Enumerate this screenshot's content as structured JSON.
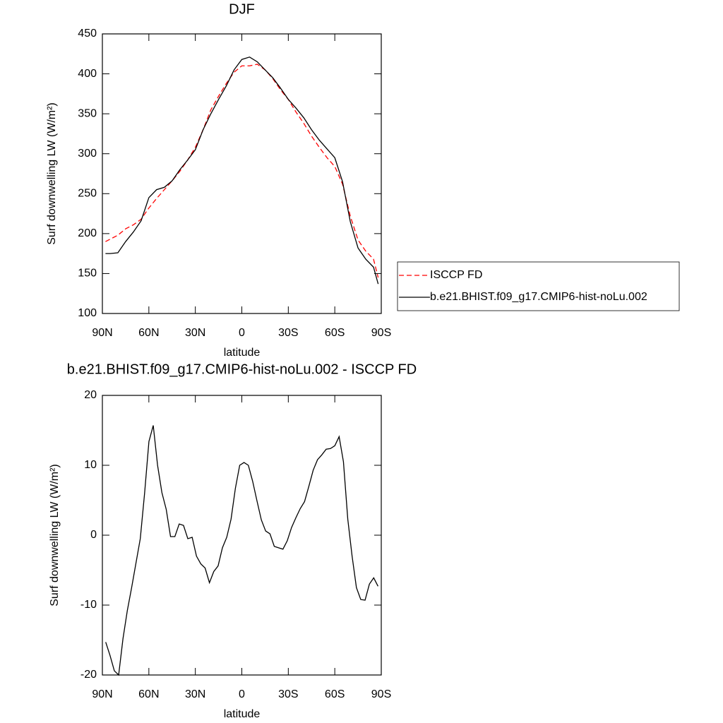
{
  "chart_data": [
    {
      "type": "line",
      "title": "DJF",
      "xlabel": "latitude",
      "ylabel": "Surf downwelling LW (W/m²)",
      "x": [
        88,
        85,
        80,
        75,
        70,
        65,
        60,
        55,
        50,
        45,
        40,
        35,
        30,
        25,
        20,
        15,
        10,
        5,
        0,
        -5,
        -10,
        -15,
        -20,
        -25,
        -30,
        -35,
        -40,
        -45,
        -50,
        -55,
        -60,
        -65,
        -70,
        -75,
        -80,
        -85,
        -88
      ],
      "series": [
        {
          "name": "ISCCP FD",
          "color": "#ff0000",
          "line_style": "dashed",
          "values": [
            190,
            193,
            198,
            206,
            211,
            218,
            232,
            244,
            255,
            266,
            278,
            292,
            308,
            330,
            355,
            372,
            388,
            402,
            410,
            410,
            412,
            405,
            394,
            380,
            368,
            352,
            338,
            322,
            308,
            295,
            284,
            262,
            222,
            192,
            178,
            168,
            145
          ]
        },
        {
          "name": "b.e21.BHIST.f09_g17.CMIP6-hist-noLu.002",
          "color": "#000000",
          "line_style": "solid",
          "values": [
            175,
            175,
            176,
            190,
            202,
            216,
            245,
            255,
            258,
            266,
            280,
            292,
            305,
            330,
            350,
            368,
            385,
            405,
            418,
            421,
            415,
            405,
            395,
            382,
            368,
            357,
            345,
            330,
            317,
            306,
            295,
            265,
            215,
            182,
            168,
            158,
            137
          ]
        }
      ],
      "xlim": [
        90,
        -90
      ],
      "xticks": [
        {
          "value": 90,
          "label": "90N"
        },
        {
          "value": 60,
          "label": "60N"
        },
        {
          "value": 30,
          "label": "30N"
        },
        0,
        {
          "value": -30,
          "label": "30S"
        },
        {
          "value": -60,
          "label": "60S"
        },
        {
          "value": -90,
          "label": "90S"
        }
      ],
      "ylim": [
        100,
        450
      ],
      "yticks": [
        100,
        150,
        200,
        250,
        300,
        350,
        400,
        450
      ],
      "legend": "right"
    },
    {
      "type": "line",
      "title": "b.e21.BHIST.f09_g17.CMIP6-hist-noLu.002 - ISCCP FD",
      "xlabel": "latitude",
      "ylabel": "Surf downwelling LW (W/m²)",
      "x": [
        87.86,
        85.07,
        82.28,
        79.49,
        76.7,
        73.91,
        71.12,
        68.33,
        65.54,
        62.75,
        59.96,
        57.17,
        54.38,
        51.59,
        48.8,
        46.01,
        43.22,
        40.43,
        37.64,
        34.85,
        32.06,
        29.27,
        26.48,
        23.69,
        20.9,
        18.11,
        15.32,
        12.53,
        9.74,
        6.95,
        4.16,
        1.37,
        -1.42,
        -4.21,
        -7.0,
        -9.79,
        -12.58,
        -15.37,
        -18.16,
        -20.95,
        -23.74,
        -26.53,
        -29.32,
        -32.11,
        -34.9,
        -37.69,
        -40.48,
        -43.27,
        -46.06,
        -48.85,
        -51.64,
        -54.43,
        -57.22,
        -60.01,
        -62.8,
        -65.59,
        -68.38,
        -71.17,
        -73.96,
        -76.75,
        -79.54,
        -82.33,
        -85.12,
        -87.91
      ],
      "series": [
        {
          "color": "#000000",
          "line_style": "solid",
          "values": [
            -15.3,
            -17.2,
            -19.4,
            -20,
            -14.8,
            -10.8,
            -7.5,
            -4,
            -0.5,
            6,
            13.4,
            15.7,
            10,
            6.1,
            3.7,
            -0.2,
            -0.2,
            1.6,
            1.4,
            -0.5,
            -0.3,
            -3,
            -4.1,
            -4.7,
            -6.8,
            -5.2,
            -4.4,
            -1.8,
            -0.3,
            2.3,
            6.7,
            10,
            10.4,
            10,
            7.7,
            4.9,
            2.2,
            0.6,
            0.2,
            -1.6,
            -1.8,
            -2,
            -0.8,
            1.1,
            2.5,
            3.8,
            4.8,
            7,
            9.3,
            10.8,
            11.5,
            12.3,
            12.4,
            12.8,
            14.1,
            10.5,
            2.3,
            -3,
            -7.5,
            -9.2,
            -9.3,
            -7,
            -6.1,
            -7.3
          ]
        }
      ],
      "xlim": [
        90,
        -90
      ],
      "xticks": [
        {
          "value": 90,
          "label": "90N"
        },
        {
          "value": 60,
          "label": "60N"
        },
        {
          "value": 30,
          "label": "30N"
        },
        0,
        {
          "value": -30,
          "label": "30S"
        },
        {
          "value": -60,
          "label": "60S"
        },
        {
          "value": -90,
          "label": "90S"
        }
      ],
      "ylim": [
        -20,
        20
      ],
      "yticks": [
        -20,
        -10,
        0,
        10,
        20
      ]
    }
  ]
}
